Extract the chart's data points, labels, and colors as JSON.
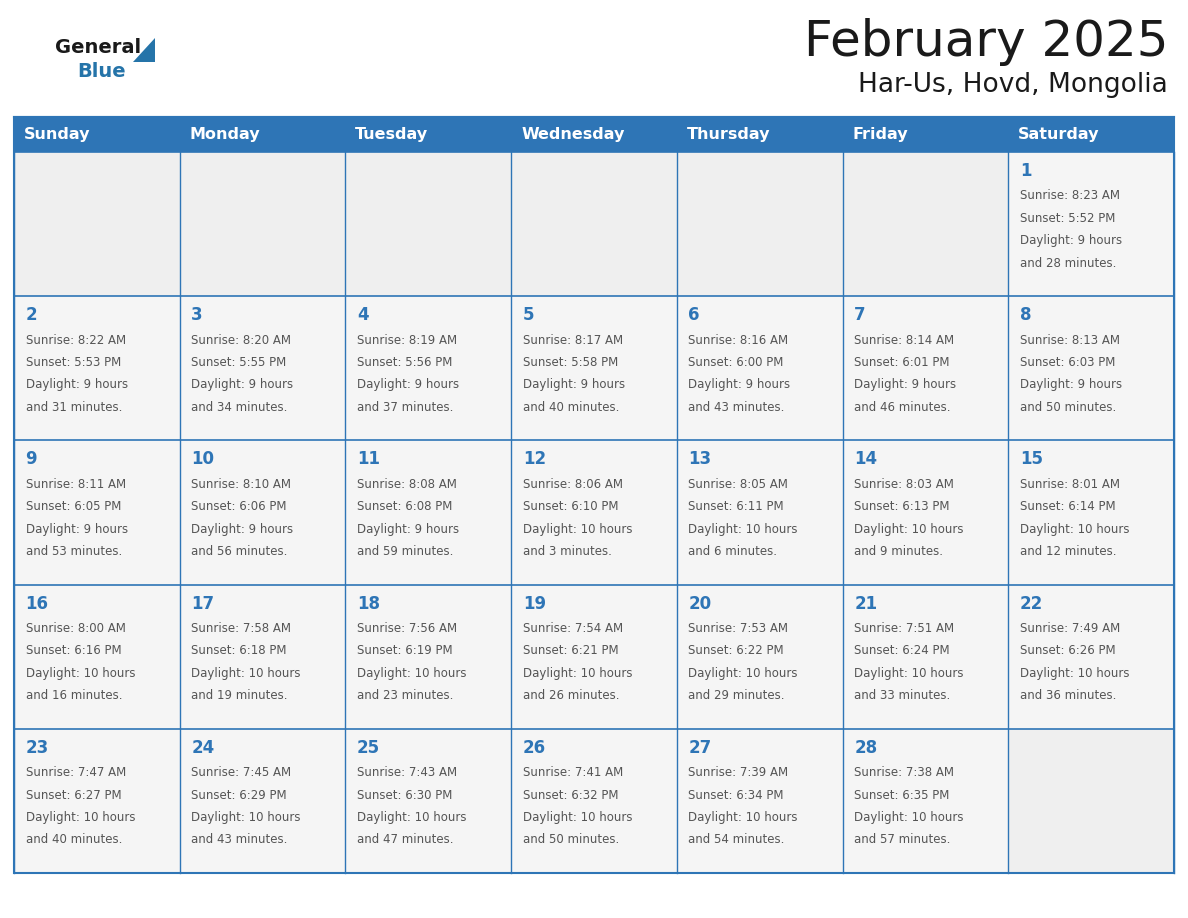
{
  "title": "February 2025",
  "subtitle": "Har-Us, Hovd, Mongolia",
  "header_bg": "#2e75b6",
  "header_text_color": "#ffffff",
  "cell_bg_empty": "#efefef",
  "cell_bg_filled": "#f5f5f5",
  "border_color": "#2e75b6",
  "day_num_color": "#2e75b6",
  "body_text_color": "#555555",
  "days_of_week": [
    "Sunday",
    "Monday",
    "Tuesday",
    "Wednesday",
    "Thursday",
    "Friday",
    "Saturday"
  ],
  "logo_general_color": "#1a1a1a",
  "logo_blue_color": "#2574a9",
  "calendar_data": [
    [
      null,
      null,
      null,
      null,
      null,
      null,
      {
        "day": "1",
        "sunrise": "8:23 AM",
        "sunset": "5:52 PM",
        "daylight_line1": "Daylight: 9 hours",
        "daylight_line2": "and 28 minutes."
      }
    ],
    [
      {
        "day": "2",
        "sunrise": "8:22 AM",
        "sunset": "5:53 PM",
        "daylight_line1": "Daylight: 9 hours",
        "daylight_line2": "and 31 minutes."
      },
      {
        "day": "3",
        "sunrise": "8:20 AM",
        "sunset": "5:55 PM",
        "daylight_line1": "Daylight: 9 hours",
        "daylight_line2": "and 34 minutes."
      },
      {
        "day": "4",
        "sunrise": "8:19 AM",
        "sunset": "5:56 PM",
        "daylight_line1": "Daylight: 9 hours",
        "daylight_line2": "and 37 minutes."
      },
      {
        "day": "5",
        "sunrise": "8:17 AM",
        "sunset": "5:58 PM",
        "daylight_line1": "Daylight: 9 hours",
        "daylight_line2": "and 40 minutes."
      },
      {
        "day": "6",
        "sunrise": "8:16 AM",
        "sunset": "6:00 PM",
        "daylight_line1": "Daylight: 9 hours",
        "daylight_line2": "and 43 minutes."
      },
      {
        "day": "7",
        "sunrise": "8:14 AM",
        "sunset": "6:01 PM",
        "daylight_line1": "Daylight: 9 hours",
        "daylight_line2": "and 46 minutes."
      },
      {
        "day": "8",
        "sunrise": "8:13 AM",
        "sunset": "6:03 PM",
        "daylight_line1": "Daylight: 9 hours",
        "daylight_line2": "and 50 minutes."
      }
    ],
    [
      {
        "day": "9",
        "sunrise": "8:11 AM",
        "sunset": "6:05 PM",
        "daylight_line1": "Daylight: 9 hours",
        "daylight_line2": "and 53 minutes."
      },
      {
        "day": "10",
        "sunrise": "8:10 AM",
        "sunset": "6:06 PM",
        "daylight_line1": "Daylight: 9 hours",
        "daylight_line2": "and 56 minutes."
      },
      {
        "day": "11",
        "sunrise": "8:08 AM",
        "sunset": "6:08 PM",
        "daylight_line1": "Daylight: 9 hours",
        "daylight_line2": "and 59 minutes."
      },
      {
        "day": "12",
        "sunrise": "8:06 AM",
        "sunset": "6:10 PM",
        "daylight_line1": "Daylight: 10 hours",
        "daylight_line2": "and 3 minutes."
      },
      {
        "day": "13",
        "sunrise": "8:05 AM",
        "sunset": "6:11 PM",
        "daylight_line1": "Daylight: 10 hours",
        "daylight_line2": "and 6 minutes."
      },
      {
        "day": "14",
        "sunrise": "8:03 AM",
        "sunset": "6:13 PM",
        "daylight_line1": "Daylight: 10 hours",
        "daylight_line2": "and 9 minutes."
      },
      {
        "day": "15",
        "sunrise": "8:01 AM",
        "sunset": "6:14 PM",
        "daylight_line1": "Daylight: 10 hours",
        "daylight_line2": "and 12 minutes."
      }
    ],
    [
      {
        "day": "16",
        "sunrise": "8:00 AM",
        "sunset": "6:16 PM",
        "daylight_line1": "Daylight: 10 hours",
        "daylight_line2": "and 16 minutes."
      },
      {
        "day": "17",
        "sunrise": "7:58 AM",
        "sunset": "6:18 PM",
        "daylight_line1": "Daylight: 10 hours",
        "daylight_line2": "and 19 minutes."
      },
      {
        "day": "18",
        "sunrise": "7:56 AM",
        "sunset": "6:19 PM",
        "daylight_line1": "Daylight: 10 hours",
        "daylight_line2": "and 23 minutes."
      },
      {
        "day": "19",
        "sunrise": "7:54 AM",
        "sunset": "6:21 PM",
        "daylight_line1": "Daylight: 10 hours",
        "daylight_line2": "and 26 minutes."
      },
      {
        "day": "20",
        "sunrise": "7:53 AM",
        "sunset": "6:22 PM",
        "daylight_line1": "Daylight: 10 hours",
        "daylight_line2": "and 29 minutes."
      },
      {
        "day": "21",
        "sunrise": "7:51 AM",
        "sunset": "6:24 PM",
        "daylight_line1": "Daylight: 10 hours",
        "daylight_line2": "and 33 minutes."
      },
      {
        "day": "22",
        "sunrise": "7:49 AM",
        "sunset": "6:26 PM",
        "daylight_line1": "Daylight: 10 hours",
        "daylight_line2": "and 36 minutes."
      }
    ],
    [
      {
        "day": "23",
        "sunrise": "7:47 AM",
        "sunset": "6:27 PM",
        "daylight_line1": "Daylight: 10 hours",
        "daylight_line2": "and 40 minutes."
      },
      {
        "day": "24",
        "sunrise": "7:45 AM",
        "sunset": "6:29 PM",
        "daylight_line1": "Daylight: 10 hours",
        "daylight_line2": "and 43 minutes."
      },
      {
        "day": "25",
        "sunrise": "7:43 AM",
        "sunset": "6:30 PM",
        "daylight_line1": "Daylight: 10 hours",
        "daylight_line2": "and 47 minutes."
      },
      {
        "day": "26",
        "sunrise": "7:41 AM",
        "sunset": "6:32 PM",
        "daylight_line1": "Daylight: 10 hours",
        "daylight_line2": "and 50 minutes."
      },
      {
        "day": "27",
        "sunrise": "7:39 AM",
        "sunset": "6:34 PM",
        "daylight_line1": "Daylight: 10 hours",
        "daylight_line2": "and 54 minutes."
      },
      {
        "day": "28",
        "sunrise": "7:38 AM",
        "sunset": "6:35 PM",
        "daylight_line1": "Daylight: 10 hours",
        "daylight_line2": "and 57 minutes."
      },
      null
    ]
  ]
}
